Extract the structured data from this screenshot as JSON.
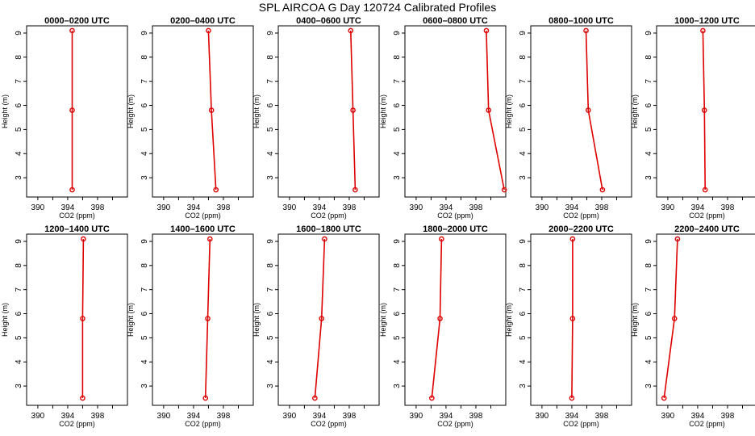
{
  "title": "SPL AIRCOA G  Day 120724  Calibrated Profiles",
  "colors": {
    "series": "#dd0000",
    "axis": "#000000"
  },
  "chart_data": {
    "type": "line",
    "xlabel": "CO2 (ppm)",
    "ylabel": "Height (m)",
    "xlim": [
      388.5,
      402
    ],
    "ylim": [
      2.2,
      9.3
    ],
    "x_ticks": [
      390,
      394,
      398
    ],
    "x_minor_ticks": [
      392,
      396,
      400
    ],
    "y_ticks": [
      3,
      4,
      5,
      6,
      7,
      8,
      9
    ],
    "heights": [
      2.5,
      5.8,
      9.1
    ],
    "grid": false,
    "panels": [
      {
        "title": "0000–0200 UTC",
        "co2": [
          394.6,
          394.6,
          394.6
        ]
      },
      {
        "title": "0200–0400 UTC",
        "co2": [
          397.0,
          396.4,
          396.0
        ]
      },
      {
        "title": "0400–0600 UTC",
        "co2": [
          398.8,
          398.5,
          398.2
        ]
      },
      {
        "title": "0600–0800 UTC",
        "co2": [
          401.8,
          399.7,
          399.4
        ]
      },
      {
        "title": "0800–1000 UTC",
        "co2": [
          398.1,
          396.2,
          395.9
        ]
      },
      {
        "title": "1000–1200 UTC",
        "co2": [
          395.0,
          394.9,
          394.7
        ]
      },
      {
        "title": "1200–1400 UTC",
        "co2": [
          396.0,
          396.0,
          396.1
        ]
      },
      {
        "title": "1400–1600 UTC",
        "co2": [
          395.6,
          395.9,
          396.2
        ]
      },
      {
        "title": "1600–1800 UTC",
        "co2": [
          393.4,
          394.3,
          394.7
        ]
      },
      {
        "title": "1800–2000 UTC",
        "co2": [
          392.1,
          393.2,
          393.4
        ]
      },
      {
        "title": "2000–2200 UTC",
        "co2": [
          394.0,
          394.1,
          394.1
        ]
      },
      {
        "title": "2200–2400 UTC",
        "co2": [
          389.5,
          390.9,
          391.3
        ]
      }
    ]
  }
}
